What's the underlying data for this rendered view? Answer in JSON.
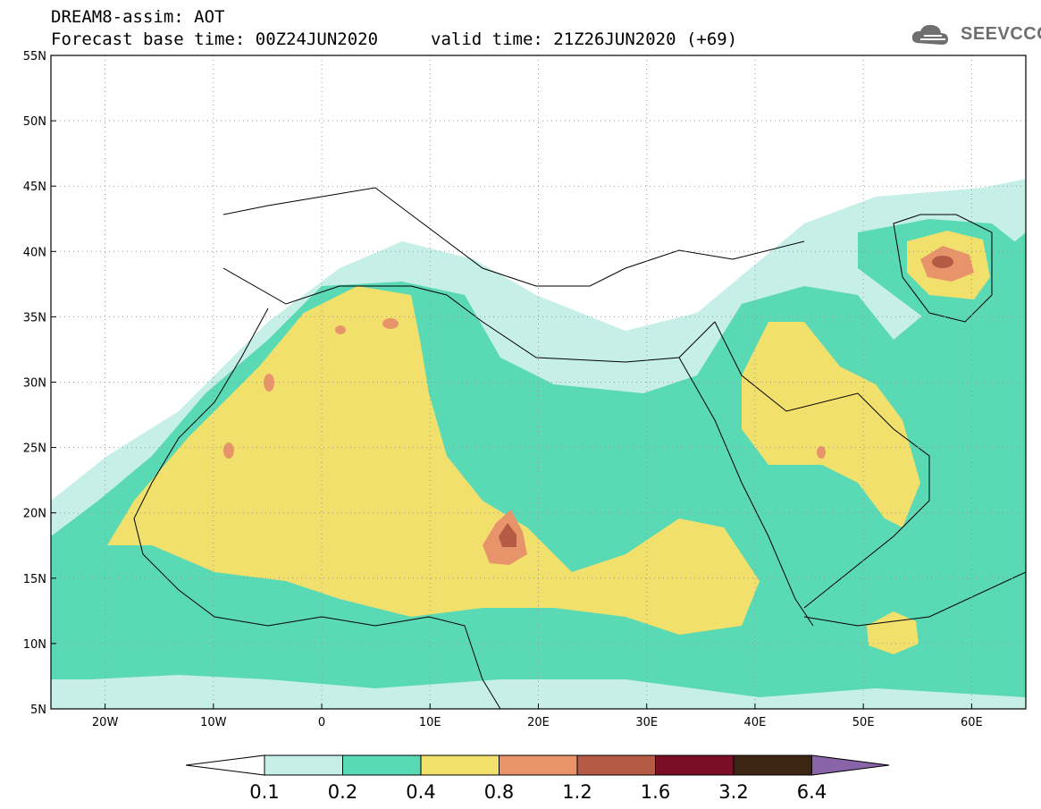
{
  "header": {
    "line1": "DREAM8-assim: AOT",
    "line2_base": "Forecast base time: 00Z24JUN2020",
    "line2_valid": "valid time: 21Z26JUN2020 (+69)"
  },
  "logo": {
    "text": "SEEVCCC",
    "icon": "cloud-logo-icon"
  },
  "map": {
    "lat_labels": [
      "55N",
      "50N",
      "45N",
      "40N",
      "35N",
      "30N",
      "25N",
      "20N",
      "15N",
      "10N",
      "5N"
    ],
    "lon_labels": [
      "20W",
      "10W",
      "0",
      "10E",
      "20E",
      "30E",
      "40E",
      "50E",
      "60E"
    ],
    "extent": {
      "lon_min": -25,
      "lon_max": 65,
      "lat_min": 5,
      "lat_max": 55
    },
    "grid": true
  },
  "colorbar": {
    "labels": [
      "0.1",
      "0.2",
      "0.4",
      "0.8",
      "1.2",
      "1.6",
      "3.2",
      "6.4"
    ],
    "colors": [
      "#ffffff",
      "#c6efe8",
      "#5ad9b5",
      "#f2e06d",
      "#e8946a",
      "#b45a45",
      "#7a0e24",
      "#3d2513",
      "#8a64a8"
    ]
  }
}
